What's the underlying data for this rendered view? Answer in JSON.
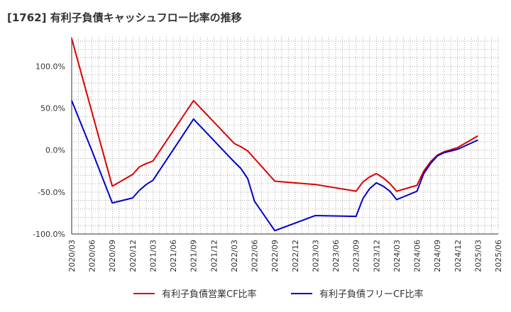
{
  "chart_data": {
    "type": "line",
    "title": "[1762]  有利子負債キャッシュフロー比率の推移",
    "xlabel": "",
    "ylabel": "",
    "x_ticks": [
      "2020/03",
      "2020/06",
      "2020/09",
      "2020/12",
      "2021/03",
      "2021/06",
      "2021/09",
      "2021/12",
      "2022/03",
      "2022/06",
      "2022/09",
      "2022/12",
      "2023/03",
      "2023/06",
      "2023/09",
      "2023/12",
      "2024/03",
      "2024/06",
      "2024/09",
      "2024/12",
      "2025/03",
      "2025/06"
    ],
    "y_ticks": [
      "-100.0%",
      "-50.0%",
      "0.0%",
      "50.0%",
      "100.0%"
    ],
    "ylim": [
      -100,
      135
    ],
    "grid": true,
    "legend_position": "bottom",
    "series": [
      {
        "name": "有利子負債営業CF比率",
        "color": "#dd0000",
        "points": [
          [
            "2020/03",
            133
          ],
          [
            "2020/06",
            45
          ],
          [
            "2020/09",
            -43
          ],
          [
            "2020/12",
            -29
          ],
          [
            "2021/01",
            -20
          ],
          [
            "2021/02",
            -16
          ],
          [
            "2021/03",
            -13
          ],
          [
            "2021/09",
            59
          ],
          [
            "2022/03",
            8
          ],
          [
            "2022/04",
            4
          ],
          [
            "2022/05",
            -1
          ],
          [
            "2022/09",
            -37
          ],
          [
            "2023/03",
            -41
          ],
          [
            "2023/09",
            -49
          ],
          [
            "2023/10",
            -38
          ],
          [
            "2023/11",
            -32
          ],
          [
            "2023/12",
            -28
          ],
          [
            "2024/01",
            -33
          ],
          [
            "2024/02",
            -40
          ],
          [
            "2024/03",
            -49
          ],
          [
            "2024/06",
            -42
          ],
          [
            "2024/07",
            -25
          ],
          [
            "2024/08",
            -14
          ],
          [
            "2024/09",
            -6
          ],
          [
            "2024/10",
            -2
          ],
          [
            "2024/12",
            3
          ],
          [
            "2025/03",
            17
          ]
        ]
      },
      {
        "name": "有利子負債フリーCF比率",
        "color": "#0000cc",
        "points": [
          [
            "2020/03",
            59
          ],
          [
            "2020/06",
            -1
          ],
          [
            "2020/09",
            -63
          ],
          [
            "2020/12",
            -57
          ],
          [
            "2021/01",
            -48
          ],
          [
            "2021/02",
            -41
          ],
          [
            "2021/03",
            -36
          ],
          [
            "2021/09",
            37
          ],
          [
            "2022/03",
            -14
          ],
          [
            "2022/04",
            -22
          ],
          [
            "2022/05",
            -34
          ],
          [
            "2022/06",
            -61
          ],
          [
            "2022/09",
            -96
          ],
          [
            "2023/03",
            -78
          ],
          [
            "2023/09",
            -79
          ],
          [
            "2023/10",
            -58
          ],
          [
            "2023/11",
            -46
          ],
          [
            "2023/12",
            -39
          ],
          [
            "2024/01",
            -43
          ],
          [
            "2024/02",
            -49
          ],
          [
            "2024/03",
            -59
          ],
          [
            "2024/06",
            -49
          ],
          [
            "2024/07",
            -28
          ],
          [
            "2024/08",
            -16
          ],
          [
            "2024/09",
            -7
          ],
          [
            "2024/10",
            -3
          ],
          [
            "2024/12",
            1
          ],
          [
            "2025/03",
            12
          ]
        ]
      }
    ]
  }
}
